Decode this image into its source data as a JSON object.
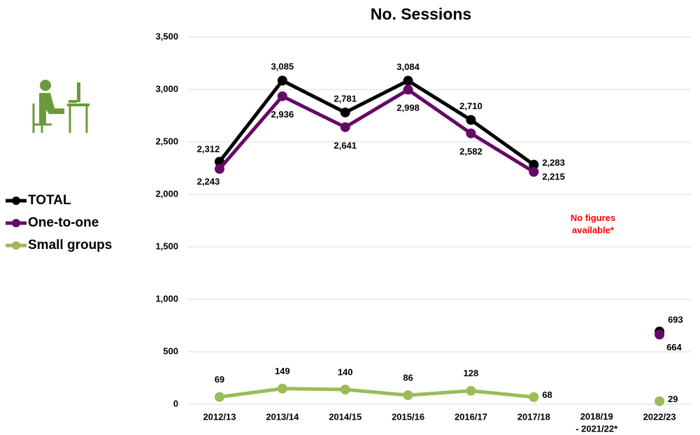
{
  "chart_data": {
    "type": "line",
    "title": "No. Sessions",
    "categories": [
      "2012/13",
      "2013/14",
      "2014/15",
      "2015/16",
      "2016/17",
      "2017/18",
      "2018/19\n- 2021/22*",
      "2022/23"
    ],
    "series": [
      {
        "name": "TOTAL",
        "color": "#000000",
        "values": [
          2312,
          3085,
          2781,
          3084,
          2710,
          2283,
          null,
          693
        ],
        "value_labels": [
          "2,312",
          "3,085",
          "2,781",
          "3,084",
          "2,710",
          "2,283",
          null,
          "693"
        ]
      },
      {
        "name": "One-to-one",
        "color": "#660a66",
        "values": [
          2243,
          2936,
          2641,
          2998,
          2582,
          2215,
          null,
          664
        ],
        "value_labels": [
          "2,243",
          "2,936",
          "2,641",
          "2,998",
          "2,582",
          "2,215",
          null,
          "664"
        ]
      },
      {
        "name": "Small groups",
        "color": "#9bbb59",
        "values": [
          69,
          149,
          140,
          86,
          128,
          68,
          null,
          29
        ]
      }
    ],
    "annotation": "No figures\navailable*",
    "ylim": [
      0,
      3500
    ],
    "yticks": [
      0,
      {
        "value": 500,
        "label": "500"
      },
      {
        "value": 1000,
        "label": "1,000"
      },
      {
        "value": 1500,
        "label": "1,500"
      },
      {
        "value": 2000,
        "label": "2,000"
      },
      {
        "value": 2500,
        "label": "2,500"
      },
      {
        "value": 3000,
        "label": "3,000"
      },
      {
        "value": 3500,
        "label": "3,500"
      }
    ],
    "grid": true,
    "legend": "left"
  }
}
